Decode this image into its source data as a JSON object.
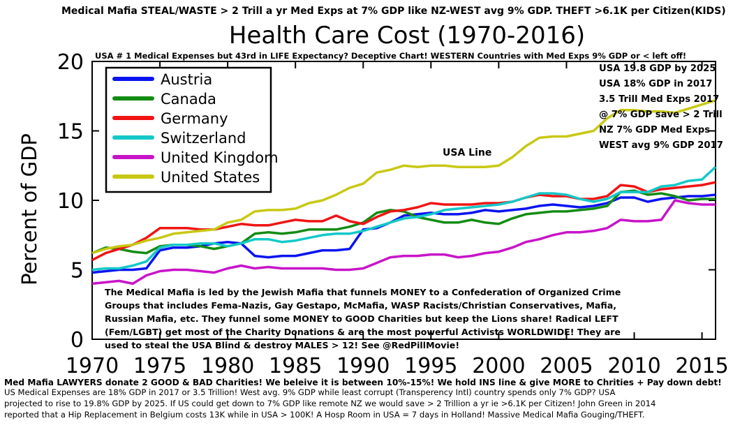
{
  "top_banner": "Medical Mafia STEAL/WASTE > 2 Trill a yr Med Exps at 7% GDP like NZ-WEST avg 9% GDP. THEFT >6.1K per Citizen(KIDS)",
  "subtitle": "USA # 1 Medical Expenses but 43rd in LIFE Expectancy?  Deceptive Chart! WESTERN Countries with Med Exps 9% GDP or < left off!",
  "annotation_lines": [
    "USA 19.8 GDP by 2025",
    "USA 18% GDP in 2017",
    "3.5 Trill Med Exps 2017",
    "@ 7% GDP save > 2 Trill",
    "NZ 7% GDP Med Exps",
    "WEST avg 9% GDP 2017"
  ],
  "usa_line_label": "USA Line",
  "mafia_paragraph": "The Medical Mafia is led by the Jewish Mafia that funnels MONEY to a Confederation of Organized Crime Groups that includes Fema-Nazis, Gay Gestapo, McMafia, WASP Racists/Christian Conservatives, Mafia, Russian Mafia, etc. They funnel some MONEY to GOOD Charities but keep the Lions share! Radical LEFT (Fem/LGBT) get most of the Charity Donations & are the most powerful Activists WORLDWIDE! They are used to steal the USA Blind & destroy MALES > 12! See @RedPillMovie!",
  "bottom_bold": "Med Mafia LAWYERS donate 2 GOOD & BAD Charities! We beleive it is between 10%-15%! We hold INS line & give MORE to Chrities + Pay down debt!",
  "bottom_lines": [
    "US Medical Expenses are 18% GDP in 2017 or 3.5 Trillion! West avg. 9% GDP while least corrupt (Transperency Intl) country spends only 7% GDP? USA",
    "projected to rise to 19.8% GDP by 2025. If US could get down to 7% GDP like remote NZ we would save > 2 Trillion a yr ie  >6.1K per Citizen! John Green in 2014",
    "reported that a Hip Replacement in Belgium costs 13K while in USA > 100K! A Hosp Room in USA = 7 days in Holland! Massive Medical Mafia Gouging/THEFT."
  ],
  "chart_data": {
    "type": "line",
    "title": "Health Care Cost (1970-2016)",
    "xlabel": "",
    "ylabel": "Percent of GDP",
    "xlim": [
      1970,
      2016
    ],
    "ylim": [
      0,
      20
    ],
    "x_ticks": [
      "1970",
      "1975",
      "1980",
      "1985",
      "1990",
      "1995",
      "2000",
      "2005",
      "2010",
      "2015"
    ],
    "y_ticks": [
      "0",
      "5",
      "10",
      "15",
      "20"
    ],
    "legend_position": "top-left",
    "grid": false,
    "x": [
      1970,
      1971,
      1972,
      1973,
      1974,
      1975,
      1976,
      1977,
      1978,
      1979,
      1980,
      1981,
      1982,
      1983,
      1984,
      1985,
      1986,
      1987,
      1988,
      1989,
      1990,
      1991,
      1992,
      1993,
      1994,
      1995,
      1996,
      1997,
      1998,
      1999,
      2000,
      2001,
      2002,
      2003,
      2004,
      2005,
      2006,
      2007,
      2008,
      2009,
      2010,
      2011,
      2012,
      2013,
      2014,
      2015,
      2016
    ],
    "series": [
      {
        "name": "Austria",
        "color": "#0a14f0",
        "values": [
          4.8,
          4.9,
          5.0,
          5.0,
          5.1,
          6.4,
          6.6,
          6.6,
          6.7,
          6.9,
          7.0,
          6.9,
          6.0,
          5.9,
          6.0,
          6.0,
          6.2,
          6.4,
          6.4,
          6.5,
          7.9,
          8.0,
          8.4,
          8.9,
          9.0,
          9.1,
          9.0,
          9.0,
          9.1,
          9.3,
          9.2,
          9.3,
          9.4,
          9.6,
          9.7,
          9.6,
          9.5,
          9.6,
          9.8,
          10.2,
          10.2,
          9.9,
          10.1,
          10.2,
          10.3,
          10.3,
          10.4
        ]
      },
      {
        "name": "Canada",
        "color": "#148c14",
        "values": [
          6.2,
          6.6,
          6.5,
          6.3,
          6.2,
          6.7,
          6.8,
          6.8,
          6.7,
          6.5,
          6.7,
          6.9,
          7.6,
          7.7,
          7.6,
          7.7,
          7.9,
          7.9,
          7.9,
          8.1,
          8.4,
          9.1,
          9.3,
          9.2,
          8.8,
          8.6,
          8.4,
          8.4,
          8.6,
          8.4,
          8.3,
          8.7,
          9.0,
          9.1,
          9.2,
          9.2,
          9.3,
          9.4,
          9.6,
          10.6,
          10.7,
          10.4,
          10.5,
          10.3,
          10.0,
          10.1,
          10.1
        ]
      },
      {
        "name": "Germany",
        "color": "#f01414",
        "values": [
          5.7,
          6.2,
          6.5,
          6.8,
          7.3,
          8.0,
          8.0,
          8.0,
          7.9,
          7.9,
          8.1,
          8.3,
          8.2,
          8.2,
          8.4,
          8.6,
          8.5,
          8.5,
          8.9,
          8.5,
          8.3,
          8.8,
          9.2,
          9.3,
          9.5,
          9.8,
          9.7,
          9.7,
          9.7,
          9.8,
          9.8,
          9.9,
          10.2,
          10.4,
          10.3,
          10.3,
          10.1,
          10.1,
          10.3,
          11.1,
          11.0,
          10.6,
          10.8,
          10.9,
          11.0,
          11.1,
          11.3
        ]
      },
      {
        "name": "Switzerland",
        "color": "#14c8c8",
        "values": [
          5.0,
          5.1,
          5.1,
          5.3,
          5.6,
          6.6,
          6.8,
          6.8,
          6.9,
          6.9,
          6.7,
          6.9,
          7.2,
          7.2,
          7.0,
          7.1,
          7.3,
          7.5,
          7.6,
          7.6,
          7.8,
          8.1,
          8.4,
          8.7,
          8.8,
          9.0,
          9.3,
          9.4,
          9.5,
          9.6,
          9.7,
          9.9,
          10.2,
          10.5,
          10.5,
          10.4,
          10.1,
          9.9,
          10.1,
          10.6,
          10.6,
          10.6,
          11.0,
          11.1,
          11.4,
          11.5,
          12.4
        ]
      },
      {
        "name": "United Kingdom",
        "color": "#c814c8",
        "values": [
          4.0,
          4.1,
          4.2,
          4.0,
          4.6,
          4.9,
          5.0,
          5.0,
          4.9,
          4.8,
          5.1,
          5.3,
          5.1,
          5.2,
          5.1,
          5.1,
          5.1,
          5.1,
          5.0,
          5.0,
          5.1,
          5.5,
          5.9,
          6.0,
          6.0,
          6.1,
          6.1,
          5.9,
          6.0,
          6.2,
          6.3,
          6.6,
          7.0,
          7.2,
          7.5,
          7.7,
          7.7,
          7.8,
          8.0,
          8.6,
          8.5,
          8.5,
          8.6,
          10.0,
          9.8,
          9.7,
          9.7
        ]
      },
      {
        "name": "United States",
        "color": "#c8c814",
        "values": [
          6.2,
          6.5,
          6.7,
          6.8,
          7.1,
          7.3,
          7.6,
          7.7,
          7.8,
          7.9,
          8.4,
          8.6,
          9.2,
          9.3,
          9.3,
          9.4,
          9.8,
          10.0,
          10.4,
          10.9,
          11.2,
          12.0,
          12.2,
          12.5,
          12.4,
          12.5,
          12.5,
          12.4,
          12.4,
          12.4,
          12.5,
          13.1,
          13.9,
          14.5,
          14.6,
          14.6,
          14.8,
          15.0,
          15.9,
          16.5,
          16.5,
          16.4,
          16.4,
          16.3,
          16.6,
          16.9,
          17.2
        ]
      }
    ]
  }
}
